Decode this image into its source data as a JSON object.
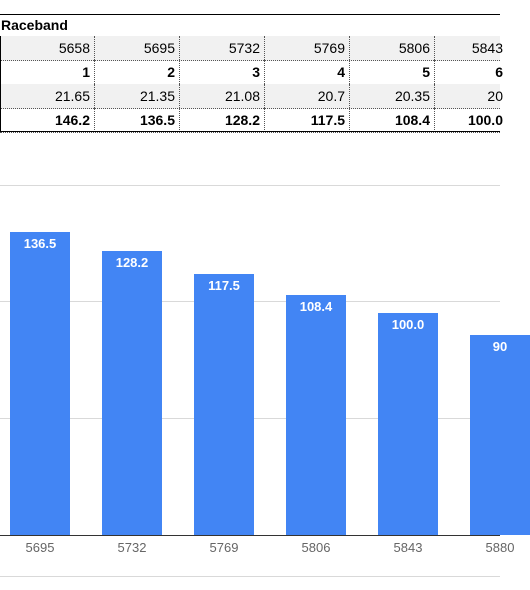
{
  "table": {
    "title": "Raceband",
    "rows": [
      {
        "values": [
          "5658",
          "5695",
          "5732",
          "5769",
          "5806",
          "5843"
        ],
        "bold": false,
        "grey": true
      },
      {
        "values": [
          "1",
          "2",
          "3",
          "4",
          "5",
          "6"
        ],
        "bold": true,
        "grey": false
      },
      {
        "values": [
          "21.65",
          "21.35",
          "21.08",
          "20.7",
          "20.35",
          "20"
        ],
        "bold": false,
        "grey": true
      },
      {
        "values": [
          "146.2",
          "136.5",
          "128.2",
          "117.5",
          "108.4",
          "100.0"
        ],
        "bold": true,
        "grey": false
      }
    ]
  },
  "chart_data": {
    "type": "bar",
    "categories": [
      "5695",
      "5732",
      "5769",
      "5806",
      "5843",
      "5880"
    ],
    "values": [
      136.5,
      128.2,
      117.5,
      108.4,
      100.0,
      90
    ],
    "labels": [
      "136.5",
      "128.2",
      "117.5",
      "108.4",
      "100.0",
      "90"
    ],
    "ylim": [
      0,
      170
    ],
    "grid": true,
    "colors": {
      "bar": "#4285f4"
    }
  }
}
